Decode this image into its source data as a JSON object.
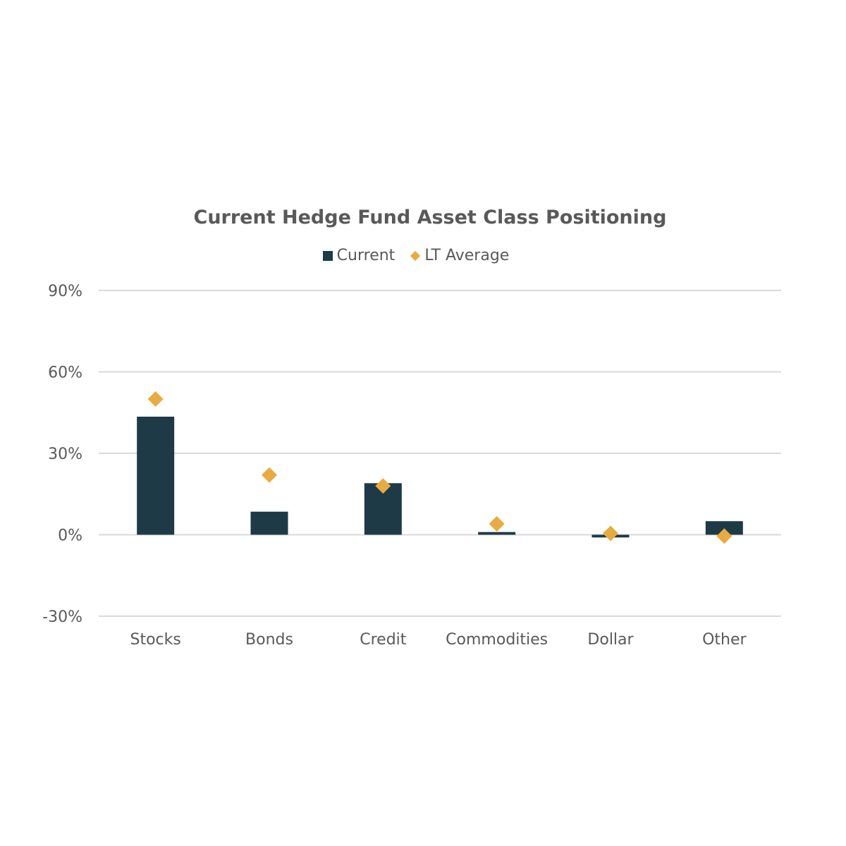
{
  "chart_data": {
    "type": "bar",
    "title": "Current Hedge Fund Asset Class Positioning",
    "categories": [
      "Stocks",
      "Bonds",
      "Credit",
      "Commodities",
      "Dollar",
      "Other"
    ],
    "series": [
      {
        "name": "Current",
        "type": "bar",
        "color": "#1e3a47",
        "values": [
          43.5,
          8.5,
          19,
          1,
          -1,
          5
        ]
      },
      {
        "name": "LT Average",
        "type": "marker",
        "marker": "diamond",
        "color": "#e8ab3f",
        "values": [
          50,
          22,
          18,
          4,
          0.5,
          -0.5
        ]
      }
    ],
    "xlabel": "",
    "ylabel": "",
    "ylim": [
      -30,
      90
    ],
    "yticks": [
      "90%",
      "60%",
      "30%",
      "0%",
      "-30%"
    ],
    "ytick_values": [
      90,
      60,
      30,
      0,
      -30
    ],
    "grid": true,
    "legend_position": "top-center"
  }
}
